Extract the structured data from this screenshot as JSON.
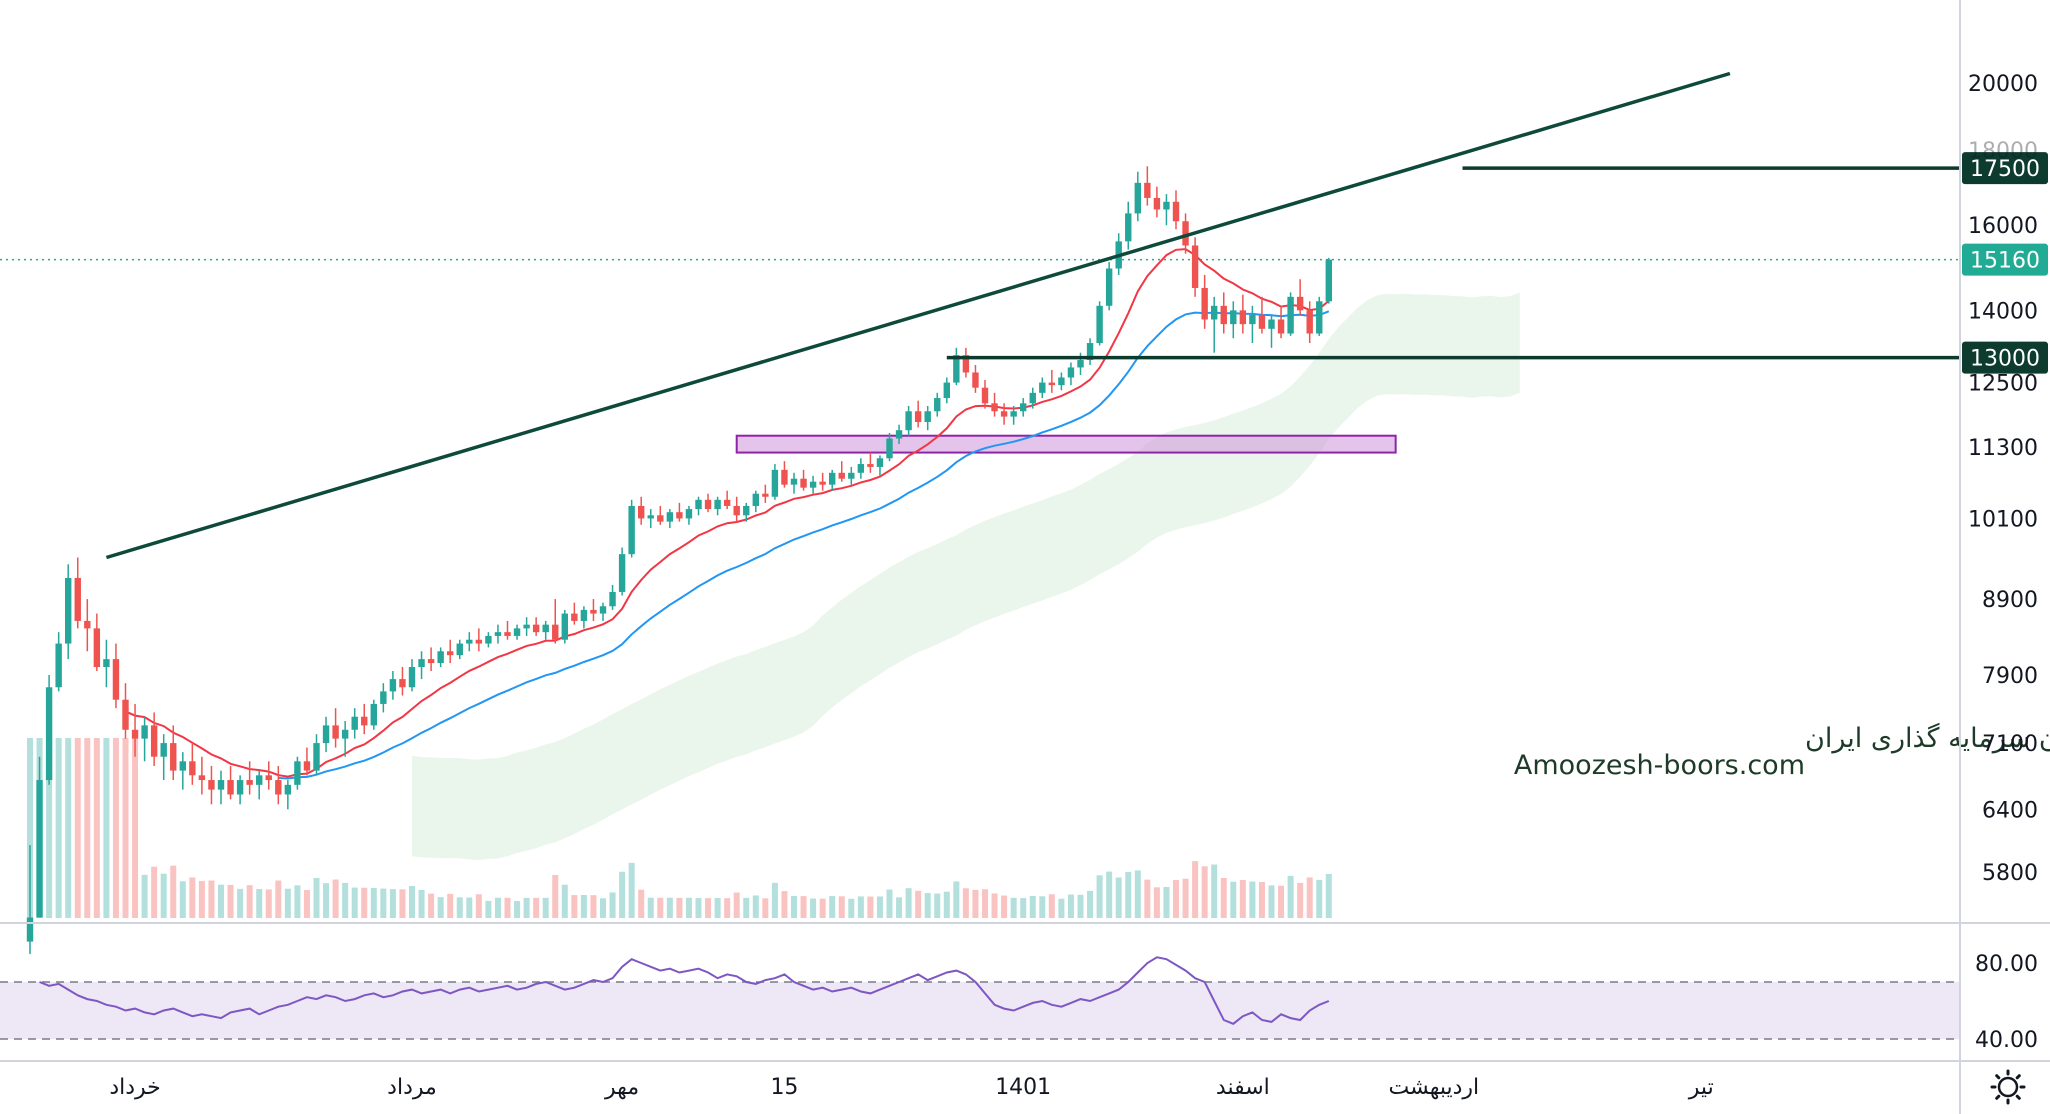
{
  "colors": {
    "up": "#26a69a",
    "down": "#ef5350",
    "trendline": "#0d4a3a",
    "level_label_bg": "#0d3b2e",
    "current_label_bg": "#22ab94",
    "ema_fast": "#f23645",
    "ema_slow": "#2196f3",
    "rsi_line": "#7e57c2",
    "rsi_band": "#ede7f6",
    "zone_fill": "#ce93d8",
    "zone_stroke": "#8e24aa",
    "cloud_bull": "#e8f5e9",
    "cloud_bear": "#ffebee",
    "grid": "#e0e3eb"
  },
  "watermark": {
    "line1": "انجمن خبرگان سرمایه گذاری ایران",
    "line2": "Amoozesh-boors.com"
  },
  "chart_data": [
    {
      "type": "candlestick",
      "title": "",
      "y_scale": "log",
      "ylim": [
        5300,
        21500
      ],
      "y_ticks": [
        20000,
        18000,
        16000,
        14000,
        12500,
        11300,
        10100,
        8900,
        7900,
        7100,
        6400,
        5800
      ],
      "y_tick_labels": [
        "20000",
        "18000",
        "16000",
        "14000",
        "12500",
        "11300",
        "10100",
        "8900",
        "7900",
        "7100",
        "6400",
        "5800"
      ],
      "x_tick_labels": [
        "خرداد",
        "مرداد",
        "مهر",
        "15",
        "1401",
        "اسفند",
        "اردیبهشت",
        "تیر"
      ],
      "x_tick_bar_index": [
        11,
        40,
        62,
        79,
        104,
        127,
        147,
        175
      ],
      "levels": [
        {
          "value": 17500,
          "label": "17500"
        },
        {
          "value": 13000,
          "label": "13000"
        }
      ],
      "current_price": {
        "value": 15160,
        "label": "15160"
      },
      "support_zone": {
        "low": 11200,
        "high": 11500
      },
      "trendline": [
        {
          "bar": 8,
          "price": 9500
        },
        {
          "bar": 178,
          "price": 20300
        }
      ],
      "volume_visible": true,
      "series": [
        {
          "kind": "ohlc",
          "points": [
            [
              5200,
              6050,
              5100,
              5400
            ],
            [
              5400,
              6950,
              5400,
              6700
            ],
            [
              6700,
              7900,
              6650,
              7750
            ],
            [
              7750,
              8450,
              7700,
              8300
            ],
            [
              8300,
              9400,
              8100,
              9200
            ],
            [
              9200,
              9500,
              8500,
              8600
            ],
            [
              8600,
              8900,
              8200,
              8500
            ],
            [
              8500,
              8700,
              7950,
              8000
            ],
            [
              8000,
              8350,
              7750,
              8100
            ],
            [
              8100,
              8300,
              7500,
              7600
            ],
            [
              7600,
              7800,
              7150,
              7250
            ],
            [
              7250,
              7550,
              6950,
              7150
            ],
            [
              7150,
              7400,
              6900,
              7300
            ],
            [
              7300,
              7450,
              6850,
              6950
            ],
            [
              6950,
              7200,
              6700,
              7100
            ],
            [
              7100,
              7300,
              6700,
              6800
            ],
            [
              6800,
              7000,
              6600,
              6900
            ],
            [
              6900,
              7100,
              6650,
              6750
            ],
            [
              6750,
              6950,
              6550,
              6700
            ],
            [
              6700,
              6850,
              6450,
              6600
            ],
            [
              6600,
              6800,
              6450,
              6700
            ],
            [
              6700,
              6850,
              6500,
              6550
            ],
            [
              6550,
              6750,
              6450,
              6700
            ],
            [
              6700,
              6900,
              6550,
              6650
            ],
            [
              6650,
              6800,
              6500,
              6750
            ],
            [
              6750,
              6900,
              6600,
              6700
            ],
            [
              6700,
              6850,
              6450,
              6550
            ],
            [
              6550,
              6700,
              6400,
              6650
            ],
            [
              6650,
              6950,
              6600,
              6900
            ],
            [
              6900,
              7050,
              6750,
              6800
            ],
            [
              6800,
              7200,
              6750,
              7100
            ],
            [
              7100,
              7400,
              7000,
              7300
            ],
            [
              7300,
              7500,
              7050,
              7150
            ],
            [
              7150,
              7350,
              6950,
              7250
            ],
            [
              7250,
              7500,
              7150,
              7400
            ],
            [
              7400,
              7550,
              7200,
              7300
            ],
            [
              7300,
              7600,
              7250,
              7550
            ],
            [
              7550,
              7800,
              7450,
              7700
            ],
            [
              7700,
              7950,
              7600,
              7850
            ],
            [
              7850,
              8000,
              7650,
              7750
            ],
            [
              7750,
              8100,
              7700,
              8000
            ],
            [
              8000,
              8200,
              7850,
              8100
            ],
            [
              8100,
              8250,
              7950,
              8050
            ],
            [
              8050,
              8250,
              8000,
              8200
            ],
            [
              8200,
              8350,
              8050,
              8150
            ],
            [
              8150,
              8350,
              8100,
              8300
            ],
            [
              8300,
              8450,
              8200,
              8350
            ],
            [
              8350,
              8500,
              8200,
              8300
            ],
            [
              8300,
              8450,
              8250,
              8400
            ],
            [
              8400,
              8550,
              8300,
              8450
            ],
            [
              8450,
              8600,
              8350,
              8400
            ],
            [
              8400,
              8550,
              8350,
              8500
            ],
            [
              8500,
              8650,
              8400,
              8550
            ],
            [
              8550,
              8650,
              8400,
              8450
            ],
            [
              8450,
              8600,
              8350,
              8550
            ],
            [
              8550,
              8900,
              8300,
              8350
            ],
            [
              8350,
              8750,
              8300,
              8700
            ],
            [
              8700,
              8850,
              8550,
              8600
            ],
            [
              8600,
              8800,
              8500,
              8750
            ],
            [
              8750,
              8900,
              8600,
              8700
            ],
            [
              8700,
              8850,
              8600,
              8800
            ],
            [
              8800,
              9100,
              8750,
              9000
            ],
            [
              9000,
              9650,
              8950,
              9550
            ],
            [
              9550,
              10400,
              9500,
              10300
            ],
            [
              10300,
              10450,
              10000,
              10100
            ],
            [
              10100,
              10250,
              9950,
              10150
            ],
            [
              10150,
              10300,
              10000,
              10050
            ],
            [
              10050,
              10250,
              9950,
              10200
            ],
            [
              10200,
              10350,
              10050,
              10100
            ],
            [
              10100,
              10300,
              10000,
              10250
            ],
            [
              10250,
              10450,
              10150,
              10400
            ],
            [
              10400,
              10500,
              10200,
              10250
            ],
            [
              10250,
              10450,
              10150,
              10400
            ],
            [
              10400,
              10550,
              10250,
              10300
            ],
            [
              10300,
              10450,
              10050,
              10150
            ],
            [
              10150,
              10350,
              10050,
              10300
            ],
            [
              10300,
              10550,
              10200,
              10500
            ],
            [
              10500,
              10650,
              10350,
              10450
            ],
            [
              10450,
              11000,
              10400,
              10900
            ],
            [
              10900,
              11050,
              10600,
              10650
            ],
            [
              10650,
              10850,
              10500,
              10750
            ],
            [
              10750,
              10900,
              10550,
              10600
            ],
            [
              10600,
              10800,
              10500,
              10700
            ],
            [
              10700,
              10850,
              10550,
              10650
            ],
            [
              10650,
              10900,
              10550,
              10850
            ],
            [
              10850,
              11050,
              10700,
              10750
            ],
            [
              10750,
              10950,
              10650,
              10850
            ],
            [
              10850,
              11100,
              10750,
              11000
            ],
            [
              11000,
              11200,
              10850,
              10950
            ],
            [
              10950,
              11150,
              10800,
              11100
            ],
            [
              11100,
              11550,
              11050,
              11450
            ],
            [
              11450,
              11700,
              11350,
              11600
            ],
            [
              11600,
              12050,
              11500,
              11950
            ],
            [
              11950,
              12150,
              11650,
              11750
            ],
            [
              11750,
              12050,
              11600,
              11950
            ],
            [
              11950,
              12300,
              11850,
              12200
            ],
            [
              12200,
              12600,
              12100,
              12500
            ],
            [
              12500,
              13200,
              12450,
              13050
            ],
            [
              13050,
              13200,
              12600,
              12700
            ],
            [
              12700,
              12850,
              12300,
              12400
            ],
            [
              12400,
              12550,
              12000,
              12100
            ],
            [
              12100,
              12300,
              11850,
              11950
            ],
            [
              11950,
              12100,
              11700,
              11850
            ],
            [
              11850,
              12050,
              11700,
              11950
            ],
            [
              11950,
              12200,
              11850,
              12100
            ],
            [
              12100,
              12400,
              12000,
              12300
            ],
            [
              12300,
              12600,
              12200,
              12500
            ],
            [
              12500,
              12750,
              12300,
              12450
            ],
            [
              12450,
              12700,
              12350,
              12600
            ],
            [
              12600,
              12900,
              12450,
              12800
            ],
            [
              12800,
              13100,
              12650,
              12950
            ],
            [
              12950,
              13400,
              12850,
              13300
            ],
            [
              13300,
              14200,
              13250,
              14100
            ],
            [
              14100,
              15100,
              14000,
              14950
            ],
            [
              14950,
              15800,
              14800,
              15600
            ],
            [
              15600,
              16600,
              15400,
              16300
            ],
            [
              16300,
              17400,
              16100,
              17100
            ],
            [
              17100,
              17550,
              16500,
              16700
            ],
            [
              16700,
              17000,
              16200,
              16400
            ],
            [
              16400,
              16800,
              16000,
              16600
            ],
            [
              16600,
              16900,
              15900,
              16100
            ],
            [
              16100,
              16300,
              15300,
              15500
            ],
            [
              15500,
              15700,
              14300,
              14500
            ],
            [
              14500,
              14800,
              13600,
              13800
            ],
            [
              13800,
              14300,
              13100,
              14100
            ],
            [
              14100,
              14400,
              13500,
              13700
            ],
            [
              13700,
              14200,
              13400,
              14000
            ],
            [
              14000,
              14350,
              13500,
              13700
            ],
            [
              13700,
              14100,
              13300,
              13900
            ],
            [
              13900,
              14300,
              13500,
              13600
            ],
            [
              13600,
              13900,
              13200,
              13800
            ],
            [
              13800,
              14100,
              13400,
              13500
            ],
            [
              13500,
              14400,
              13450,
              14300
            ],
            [
              14300,
              14700,
              13900,
              14000
            ],
            [
              14000,
              14200,
              13300,
              13500
            ],
            [
              13500,
              14300,
              13450,
              14200
            ],
            [
              14200,
              15200,
              14150,
              15160
            ]
          ]
        }
      ]
    },
    {
      "type": "line",
      "title": "",
      "ylim": [
        30,
        100
      ],
      "y_ticks": [
        80,
        40
      ],
      "y_tick_labels": [
        "80.00",
        "40.00"
      ],
      "band": [
        40,
        70
      ],
      "series": [
        {
          "kind": "rsi",
          "values": [
            70,
            68,
            69,
            66,
            63,
            61,
            60,
            58,
            57,
            55,
            56,
            54,
            53,
            55,
            56,
            54,
            52,
            53,
            52,
            51,
            54,
            55,
            56,
            53,
            55,
            57,
            58,
            60,
            62,
            61,
            63,
            62,
            60,
            61,
            63,
            64,
            62,
            63,
            65,
            66,
            64,
            65,
            66,
            64,
            66,
            67,
            65,
            66,
            67,
            68,
            66,
            67,
            69,
            70,
            68,
            66,
            67,
            69,
            71,
            70,
            72,
            78,
            82,
            80,
            78,
            76,
            77,
            75,
            76,
            77,
            75,
            72,
            74,
            73,
            70,
            69,
            71,
            72,
            74,
            70,
            68,
            66,
            67,
            65,
            66,
            67,
            65,
            64,
            66,
            68,
            70,
            72,
            74,
            71,
            73,
            75,
            76,
            74,
            70,
            64,
            58,
            56,
            55,
            57,
            59,
            60,
            58,
            57,
            59,
            61,
            60,
            62,
            64,
            66,
            70,
            75,
            80,
            83,
            82,
            79,
            76,
            72,
            70,
            60,
            50,
            48,
            52,
            54,
            50,
            49,
            53,
            51,
            50,
            55,
            58,
            60
          ]
        }
      ]
    }
  ]
}
